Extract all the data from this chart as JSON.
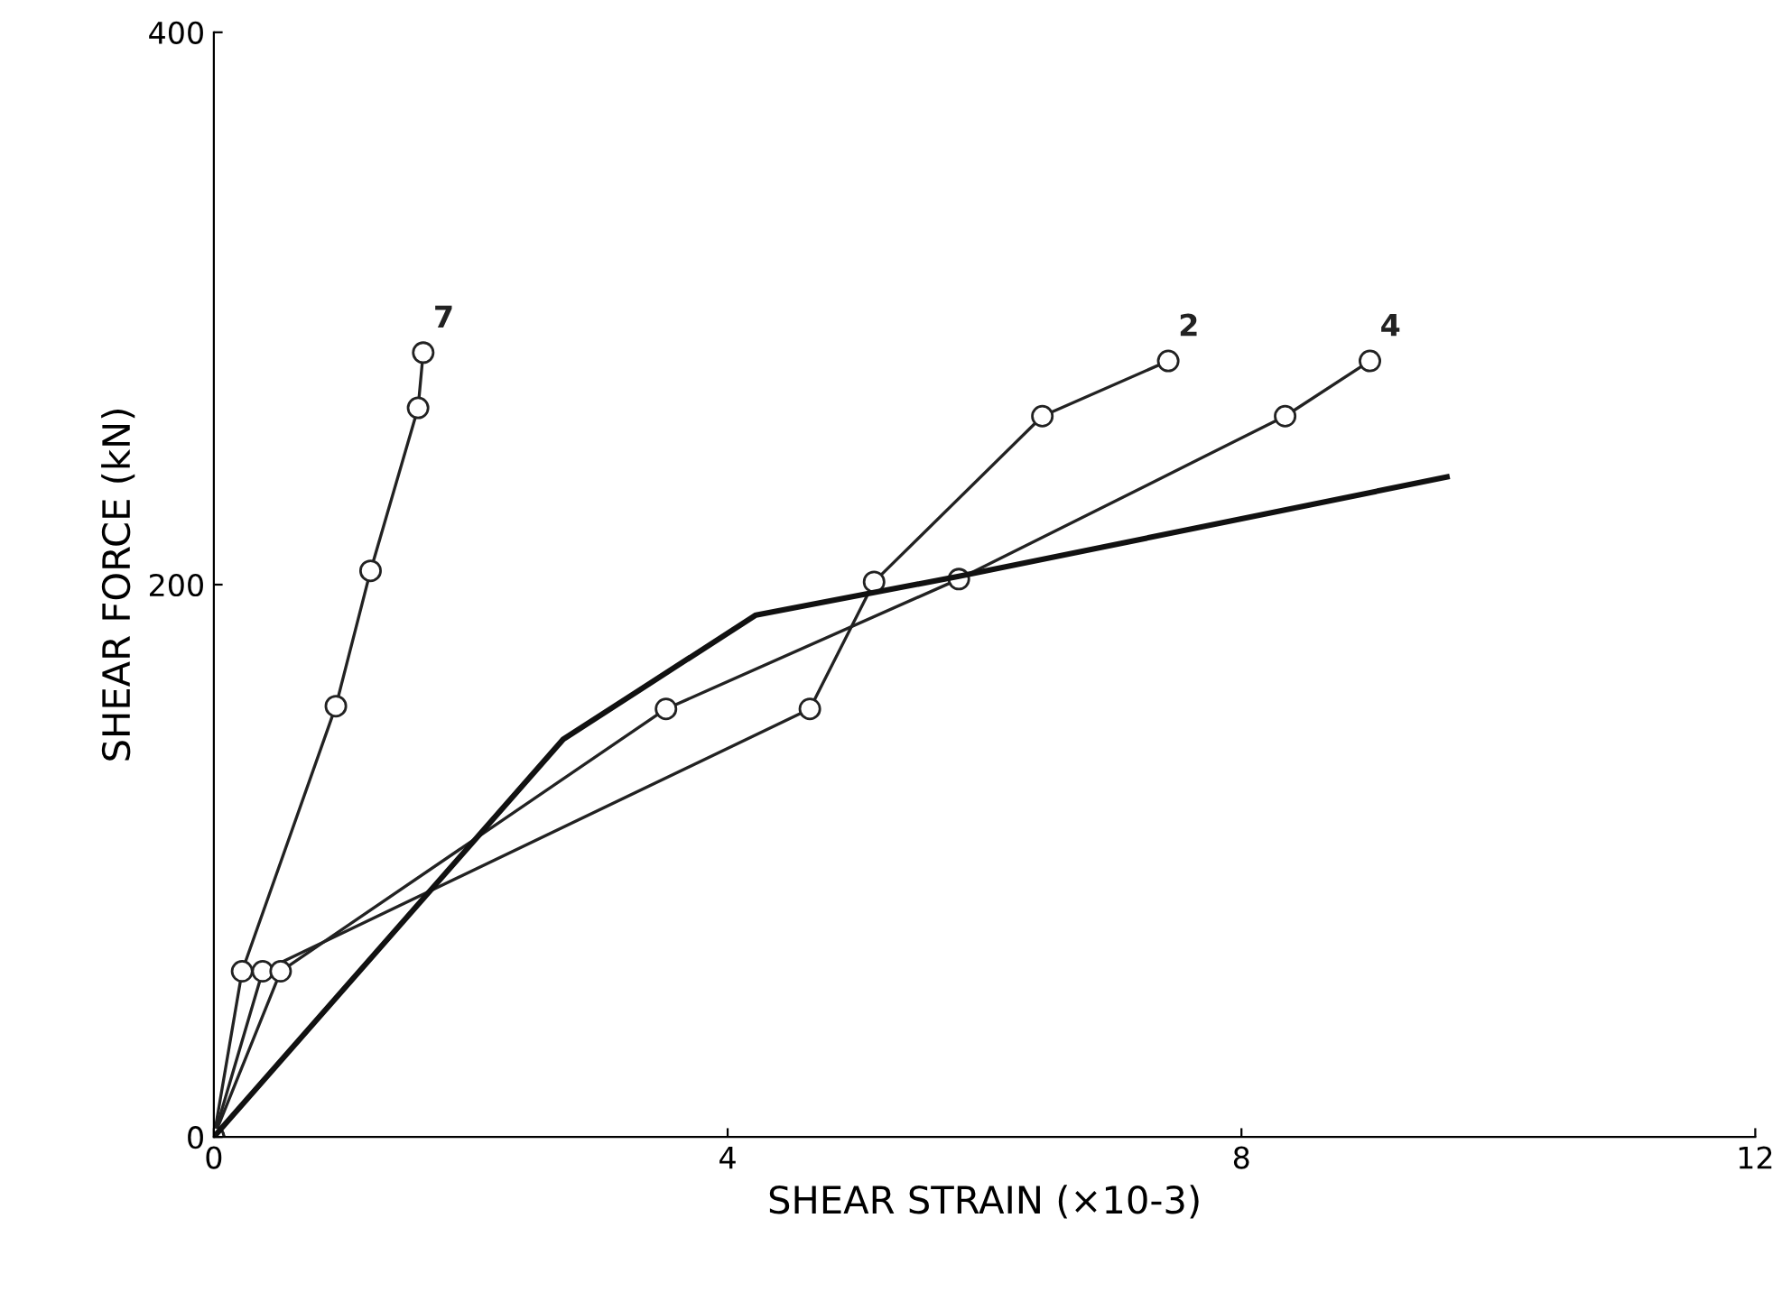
{
  "chart_data": {
    "type": "line",
    "xlabel": "SHEAR STRAIN (×10-3)",
    "ylabel": "SHEAR FORCE (kN)",
    "xlim": [
      0,
      12
    ],
    "ylim": [
      0,
      400
    ],
    "xticks": [
      0,
      4,
      8,
      12
    ],
    "yticks": [
      0,
      200,
      400
    ],
    "grid": false,
    "legend": false,
    "marker": "circle",
    "series": [
      {
        "name": "7",
        "color": "#222222",
        "x": [
          0,
          0.22,
          0.95,
          1.22,
          1.59,
          1.63
        ],
        "values": [
          0,
          60,
          156,
          205,
          264,
          284
        ]
      },
      {
        "name": "2",
        "color": "#222222",
        "x": [
          0,
          0.38,
          4.64,
          5.14,
          6.45,
          7.43
        ],
        "values": [
          0,
          60,
          155,
          201,
          261,
          281
        ]
      },
      {
        "name": "4",
        "color": "#222222",
        "x": [
          0,
          0.52,
          3.52,
          5.8,
          8.34,
          9.0
        ],
        "values": [
          0,
          60,
          155,
          202,
          261,
          281
        ]
      },
      {
        "color": "#111111",
        "marker": "none",
        "x": [
          0,
          2.72,
          4.22,
          5.8,
          9.6
        ],
        "values": [
          0,
          144,
          189,
          203,
          239
        ]
      }
    ]
  }
}
